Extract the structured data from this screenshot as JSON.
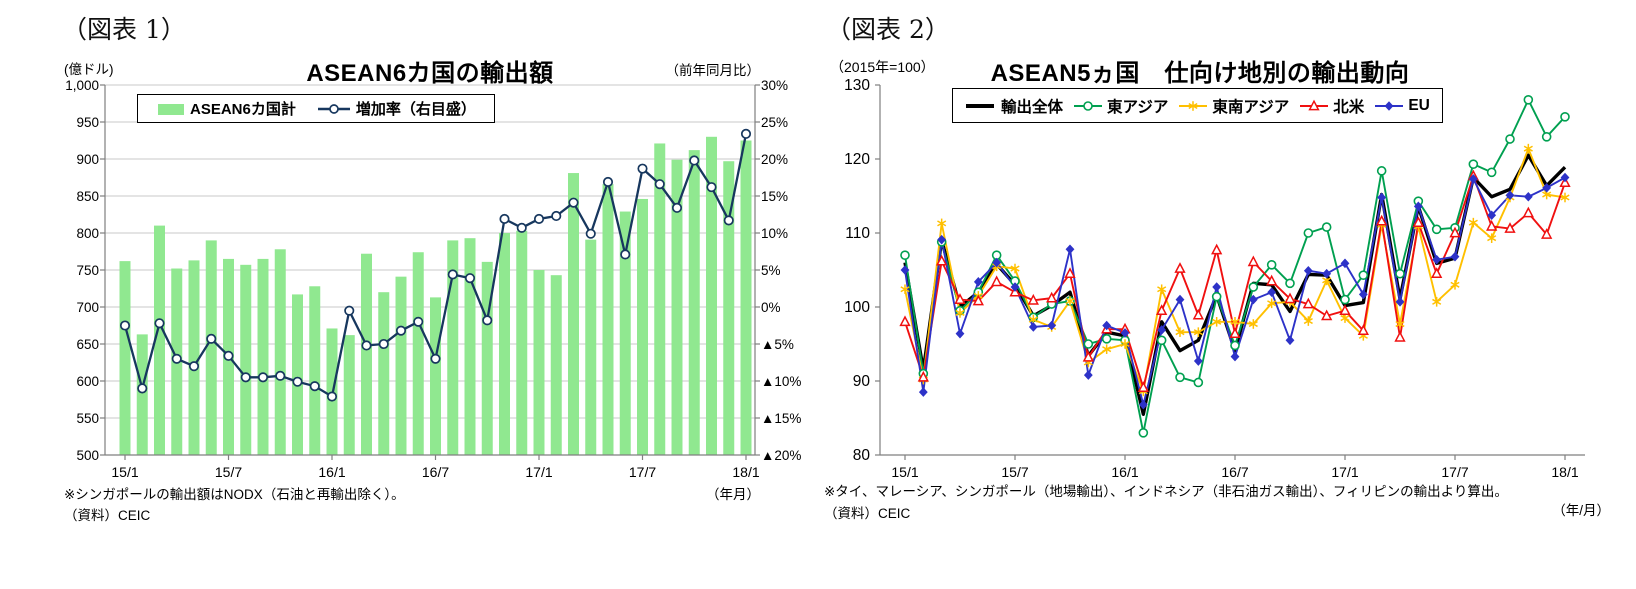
{
  "figure1": {
    "header": "（図表 1）",
    "title": "ASEAN6カ国の輸出額",
    "left_axis_unit": "(億ドル)",
    "right_axis_unit": "（前年同月比）",
    "x_axis_unit": "（年月）",
    "note": "※シンガポールの輸出額はNODX（石油と再輸出除く）。",
    "source": "（資料）CEIC"
  },
  "figure2": {
    "header": "（図表 2）",
    "title": "ASEAN5ヵ国　仕向け地別の輸出動向",
    "scale_note": "（2015年=100）",
    "x_axis_unit": "（年/月）",
    "note": "※タイ、マレーシア、シンガポール（地場輸出）、インドネシア（非石油ガス輸出）、フィリピンの輸出より算出。",
    "source": "（資料）CEIC"
  },
  "chart_data": [
    {
      "type": "bar+line",
      "title": "ASEAN6カ国の輸出額",
      "x": [
        "15/1",
        "15/2",
        "15/3",
        "15/4",
        "15/5",
        "15/6",
        "15/7",
        "15/8",
        "15/9",
        "15/10",
        "15/11",
        "15/12",
        "16/1",
        "16/2",
        "16/3",
        "16/4",
        "16/5",
        "16/6",
        "16/7",
        "16/8",
        "16/9",
        "16/10",
        "16/11",
        "16/12",
        "17/1",
        "17/2",
        "17/3",
        "17/4",
        "17/5",
        "17/6",
        "17/7",
        "17/8",
        "17/9",
        "17/10",
        "17/11",
        "17/12",
        "18/1"
      ],
      "x_tick_labels": [
        "15/1",
        "15/7",
        "16/1",
        "16/7",
        "17/1",
        "17/7",
        "18/1"
      ],
      "left_ylim": [
        500,
        1000
      ],
      "left_ytick_labels": [
        "1,000",
        "950",
        "900",
        "850",
        "800",
        "750",
        "700",
        "650",
        "600",
        "550",
        "500"
      ],
      "right_ylim": [
        -20,
        30
      ],
      "right_ytick_labels": [
        "30%",
        "25%",
        "20%",
        "15%",
        "10%",
        "5%",
        "0%",
        "▲5%",
        "▲10%",
        "▲15%",
        "▲20%"
      ],
      "grid": "horizontal",
      "bar_series": {
        "name": "ASEAN6カ国計",
        "axis": "left",
        "color": "#90E890",
        "values": [
          762,
          663,
          810,
          752,
          763,
          790,
          765,
          757,
          765,
          778,
          717,
          728,
          671,
          662,
          772,
          720,
          741,
          774,
          713,
          790,
          793,
          761,
          800,
          803,
          750,
          743,
          881,
          791,
          866,
          829,
          846,
          921,
          899,
          912,
          930,
          897,
          925
        ]
      },
      "line_series": {
        "name": "増加率（右目盛）",
        "axis": "right",
        "color": "#17375E",
        "marker": "circle-open",
        "values": [
          -2.5,
          -11.0,
          -2.2,
          -7.0,
          -8.0,
          -4.3,
          -6.6,
          -9.5,
          -9.5,
          -9.3,
          -10.1,
          -10.7,
          -12.1,
          -0.5,
          -5.2,
          -5.0,
          -3.2,
          -2.0,
          -7.0,
          4.4,
          3.9,
          -1.8,
          11.9,
          10.7,
          11.9,
          12.3,
          14.1,
          9.9,
          16.9,
          7.1,
          18.7,
          16.6,
          13.4,
          19.8,
          16.2,
          11.7,
          23.4
        ]
      }
    },
    {
      "type": "line",
      "title": "ASEAN5ヵ国　仕向け地別の輸出動向",
      "x": [
        "15/1",
        "15/2",
        "15/3",
        "15/4",
        "15/5",
        "15/6",
        "15/7",
        "15/8",
        "15/9",
        "15/10",
        "15/11",
        "15/12",
        "16/1",
        "16/2",
        "16/3",
        "16/4",
        "16/5",
        "16/6",
        "16/7",
        "16/8",
        "16/9",
        "16/10",
        "16/11",
        "16/12",
        "17/1",
        "17/2",
        "17/3",
        "17/4",
        "17/5",
        "17/6",
        "17/7",
        "17/8",
        "17/9",
        "17/10",
        "17/11",
        "17/12",
        "18/1"
      ],
      "x_tick_labels": [
        "15/1",
        "15/7",
        "16/1",
        "16/7",
        "17/1",
        "17/7",
        "18/1"
      ],
      "ylim": [
        80,
        130
      ],
      "ytick_labels": [
        "130",
        "120",
        "110",
        "100",
        "90",
        "80"
      ],
      "grid": "none",
      "series": [
        {
          "name": "輸出全体",
          "color": "#000000",
          "marker": "none",
          "width": 3.4,
          "values": [
            106.0,
            91.5,
            109.0,
            100.0,
            102.0,
            105.8,
            103.0,
            98.8,
            100.2,
            102.0,
            93.4,
            96.6,
            96.1,
            85.5,
            98.0,
            94.1,
            95.5,
            101.6,
            94.1,
            103.2,
            103.0,
            99.4,
            104.4,
            104.3,
            100.2,
            100.6,
            115.2,
            101.1,
            113.6,
            105.9,
            106.6,
            117.5,
            114.9,
            115.9,
            120.5,
            116.4,
            118.9
          ]
        },
        {
          "name": "東アジア",
          "color": "#00A050",
          "marker": "circle-open",
          "width": 1.9,
          "values": [
            107.0,
            91.0,
            108.8,
            99.5,
            102.0,
            107.0,
            103.5,
            98.6,
            100.4,
            100.8,
            95.0,
            95.7,
            95.5,
            83.0,
            95.5,
            90.5,
            89.8,
            101.4,
            94.8,
            102.7,
            105.7,
            103.2,
            110.0,
            110.8,
            101.0,
            104.3,
            118.4,
            104.5,
            114.3,
            110.5,
            110.7,
            119.3,
            118.2,
            122.7,
            128.0,
            123.0,
            125.7
          ]
        },
        {
          "name": "東南アジア",
          "color": "#FFC000",
          "marker": "asterisk",
          "width": 1.9,
          "values": [
            102.4,
            90.2,
            111.3,
            99.2,
            101.5,
            105.5,
            105.2,
            98.3,
            97.3,
            100.8,
            92.5,
            94.3,
            95.0,
            88.6,
            102.4,
            96.6,
            96.6,
            98.0,
            98.0,
            97.7,
            100.5,
            100.7,
            98.1,
            103.6,
            98.5,
            96.1,
            111.1,
            97.7,
            110.9,
            100.7,
            103.0,
            111.4,
            109.3,
            114.8,
            121.4,
            115.2,
            114.8
          ]
        },
        {
          "name": "北米",
          "color": "#F01010",
          "marker": "triangle-open",
          "width": 1.9,
          "values": [
            98.0,
            90.5,
            106.2,
            101.0,
            100.8,
            103.4,
            102.0,
            100.9,
            101.2,
            104.5,
            93.2,
            97.0,
            97.0,
            89.1,
            99.5,
            105.2,
            98.9,
            107.7,
            96.4,
            106.1,
            103.5,
            101.1,
            100.4,
            98.8,
            99.5,
            96.8,
            111.6,
            95.9,
            111.4,
            104.5,
            110.0,
            117.7,
            110.9,
            110.6,
            112.7,
            109.8,
            116.8
          ]
        },
        {
          "name": "EU",
          "color": "#2D32C8",
          "marker": "diamond",
          "width": 1.9,
          "values": [
            105.0,
            88.5,
            109.1,
            96.4,
            103.4,
            106.0,
            102.7,
            97.3,
            97.5,
            107.8,
            90.8,
            97.5,
            96.5,
            86.8,
            96.9,
            101.0,
            92.7,
            102.7,
            93.3,
            101.0,
            102.0,
            95.5,
            104.9,
            104.5,
            105.9,
            101.7,
            114.8,
            100.7,
            113.6,
            106.4,
            106.8,
            117.3,
            112.4,
            115.1,
            114.9,
            116.1,
            117.5
          ]
        }
      ]
    }
  ]
}
